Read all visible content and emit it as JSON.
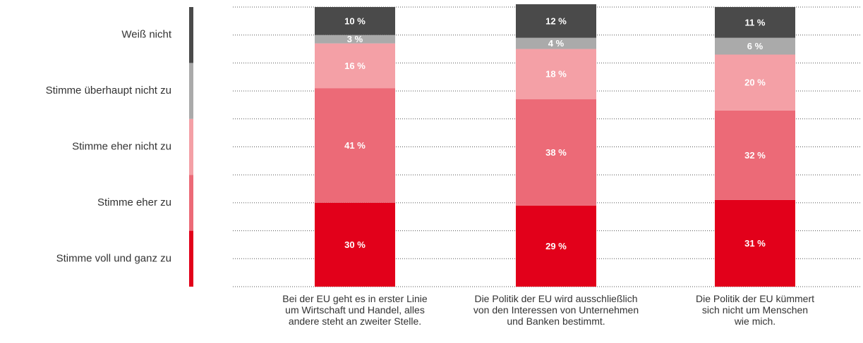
{
  "chart_data": {
    "type": "stacked_bar",
    "categories": [
      "Bei der EU geht es in erster Linie\num Wirtschaft und Handel, alles\nandere steht an zweiter Stelle.",
      "Die Politik der EU wird ausschließlich\nvon den Interessen von Unternehmen\nund Banken bestimmt.",
      "Die Politik der EU kümmert\nsich nicht um Menschen\nwie mich."
    ],
    "series": [
      {
        "name": "Stimme voll und ganz zu",
        "color": "#e2001a",
        "values": [
          30,
          29,
          31
        ],
        "value_labels": [
          "30 %",
          "29 %",
          "31 %"
        ]
      },
      {
        "name": "Stimme eher zu",
        "color": "#ec6a77",
        "values": [
          41,
          38,
          32
        ],
        "value_labels": [
          "41 %",
          "38 %",
          "32 %"
        ]
      },
      {
        "name": "Stimme eher nicht zu",
        "color": "#f4a0a6",
        "values": [
          16,
          18,
          20
        ],
        "value_labels": [
          "16 %",
          "18 %",
          "20 %"
        ]
      },
      {
        "name": "Stimme überhaupt nicht zu",
        "color": "#aaaaaa",
        "values": [
          3,
          4,
          6
        ],
        "value_labels": [
          "3 %",
          "4 %",
          "6 %"
        ]
      },
      {
        "name": "Weiß nicht",
        "color": "#4a4a4a",
        "values": [
          10,
          12,
          11
        ],
        "value_labels": [
          "10 %",
          "12 %",
          "11 %"
        ]
      }
    ],
    "ylim": [
      0,
      100
    ],
    "yticks": [
      0,
      10,
      20,
      30,
      40,
      50,
      60,
      70,
      80,
      90,
      100
    ],
    "grid": true
  }
}
